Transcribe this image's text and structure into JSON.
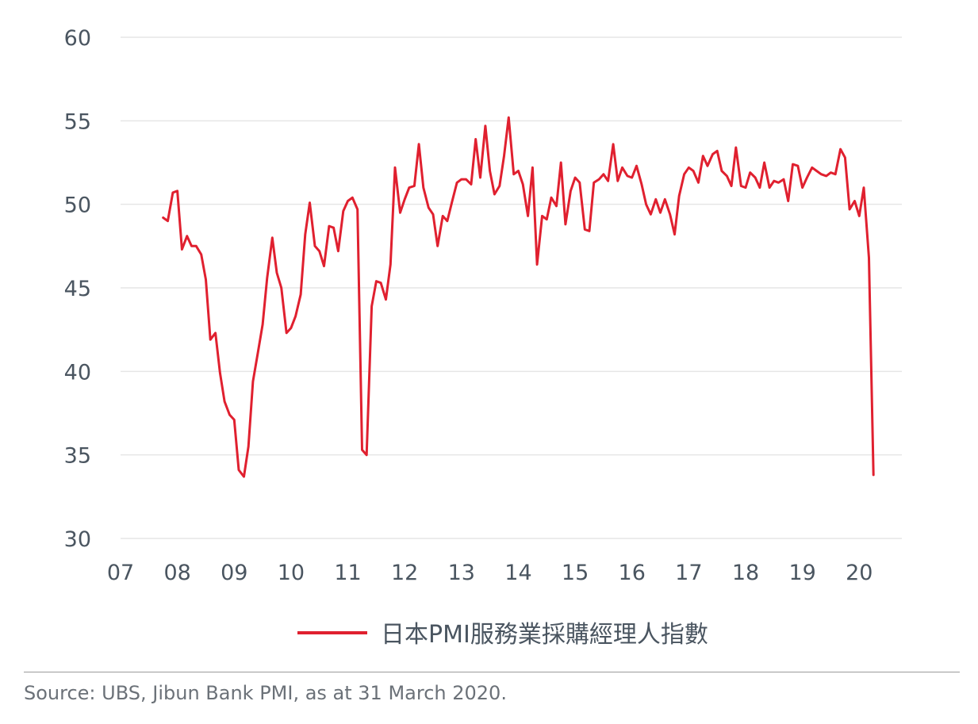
{
  "chart_data": {
    "type": "line",
    "title": "",
    "xlabel": "",
    "ylabel": "",
    "ylim": [
      30,
      60
    ],
    "yticks": [
      30,
      35,
      40,
      45,
      50,
      55,
      60
    ],
    "xlim": [
      2007.0,
      2020.75
    ],
    "xticks": [
      {
        "pos": 2007.0,
        "label": "07"
      },
      {
        "pos": 2008.0,
        "label": "08"
      },
      {
        "pos": 2009.0,
        "label": "09"
      },
      {
        "pos": 2010.0,
        "label": "10"
      },
      {
        "pos": 2011.0,
        "label": "11"
      },
      {
        "pos": 2012.0,
        "label": "12"
      },
      {
        "pos": 2013.0,
        "label": "13"
      },
      {
        "pos": 2014.0,
        "label": "14"
      },
      {
        "pos": 2015.0,
        "label": "15"
      },
      {
        "pos": 2016.0,
        "label": "16"
      },
      {
        "pos": 2017.0,
        "label": "17"
      },
      {
        "pos": 2018.0,
        "label": "18"
      },
      {
        "pos": 2019.0,
        "label": "19"
      },
      {
        "pos": 2020.0,
        "label": "20"
      }
    ],
    "grid": "horizontal",
    "legend_position": "bottom",
    "series": [
      {
        "name": "日本PMI服務業採購經理人指數",
        "color": "#e0202f",
        "x": [
          2007.75,
          2007.83,
          2007.92,
          2008.0,
          2008.08,
          2008.17,
          2008.25,
          2008.33,
          2008.42,
          2008.5,
          2008.58,
          2008.67,
          2008.75,
          2008.83,
          2008.92,
          2009.0,
          2009.08,
          2009.17,
          2009.25,
          2009.33,
          2009.42,
          2009.5,
          2009.58,
          2009.67,
          2009.75,
          2009.83,
          2009.92,
          2010.0,
          2010.08,
          2010.17,
          2010.25,
          2010.33,
          2010.42,
          2010.5,
          2010.58,
          2010.67,
          2010.75,
          2010.83,
          2010.92,
          2011.0,
          2011.08,
          2011.17,
          2011.25,
          2011.33,
          2011.42,
          2011.5,
          2011.58,
          2011.67,
          2011.75,
          2011.83,
          2011.92,
          2012.0,
          2012.08,
          2012.17,
          2012.25,
          2012.33,
          2012.42,
          2012.5,
          2012.58,
          2012.67,
          2012.75,
          2012.83,
          2012.92,
          2013.0,
          2013.08,
          2013.17,
          2013.25,
          2013.33,
          2013.42,
          2013.5,
          2013.58,
          2013.67,
          2013.75,
          2013.83,
          2013.92,
          2014.0,
          2014.08,
          2014.17,
          2014.25,
          2014.33,
          2014.42,
          2014.5,
          2014.58,
          2014.67,
          2014.75,
          2014.83,
          2014.92,
          2015.0,
          2015.08,
          2015.17,
          2015.25,
          2015.33,
          2015.42,
          2015.5,
          2015.58,
          2015.67,
          2015.75,
          2015.83,
          2015.92,
          2016.0,
          2016.08,
          2016.17,
          2016.25,
          2016.33,
          2016.42,
          2016.5,
          2016.58,
          2016.67,
          2016.75,
          2016.83,
          2016.92,
          2017.0,
          2017.08,
          2017.17,
          2017.25,
          2017.33,
          2017.42,
          2017.5,
          2017.58,
          2017.67,
          2017.75,
          2017.83,
          2017.92,
          2018.0,
          2018.08,
          2018.17,
          2018.25,
          2018.33,
          2018.42,
          2018.5,
          2018.58,
          2018.67,
          2018.75,
          2018.83,
          2018.92,
          2019.0,
          2019.08,
          2019.17,
          2019.25,
          2019.33,
          2019.42,
          2019.5,
          2019.58,
          2019.67,
          2019.75,
          2019.83,
          2019.92,
          2020.0,
          2020.08,
          2020.17,
          2020.25
        ],
        "y": [
          49.2,
          49.0,
          50.7,
          50.8,
          47.3,
          48.1,
          47.5,
          47.5,
          47.0,
          45.5,
          41.9,
          42.3,
          39.9,
          38.2,
          37.4,
          37.1,
          34.1,
          33.7,
          35.5,
          39.4,
          41.2,
          42.8,
          45.6,
          48.0,
          45.9,
          45.0,
          42.3,
          42.6,
          43.3,
          44.6,
          48.2,
          50.1,
          47.5,
          47.2,
          46.3,
          48.7,
          48.6,
          47.2,
          49.6,
          50.2,
          50.4,
          49.7,
          35.3,
          35.0,
          43.9,
          45.4,
          45.3,
          44.3,
          46.4,
          52.2,
          49.5,
          50.3,
          51.0,
          51.1,
          53.6,
          51.0,
          49.8,
          49.4,
          47.5,
          49.3,
          49.0,
          50.1,
          51.3,
          51.5,
          51.5,
          51.2,
          53.9,
          51.6,
          54.7,
          52.0,
          50.6,
          51.1,
          52.9,
          55.2,
          51.8,
          52.0,
          51.2,
          49.3,
          52.2,
          46.4,
          49.3,
          49.1,
          50.4,
          49.9,
          52.5,
          48.8,
          50.8,
          51.6,
          51.3,
          48.5,
          48.4,
          51.3,
          51.5,
          51.8,
          51.4,
          53.6,
          51.4,
          52.2,
          51.7,
          51.6,
          52.3,
          51.2,
          50.0,
          49.4,
          50.3,
          49.5,
          50.3,
          49.4,
          48.2,
          50.5,
          51.8,
          52.2,
          52.0,
          51.3,
          52.9,
          52.3,
          53.0,
          53.2,
          52.0,
          51.7,
          51.1,
          53.4,
          51.1,
          51.0,
          51.9,
          51.6,
          51.0,
          52.5,
          51.0,
          51.4,
          51.3,
          51.5,
          50.2,
          52.4,
          52.3,
          51.0,
          51.6,
          52.2,
          52.0,
          51.8,
          51.7,
          51.9,
          51.8,
          53.3,
          52.8,
          49.7,
          50.2,
          49.3,
          51.0,
          46.8,
          33.8
        ]
      }
    ]
  },
  "legend": {
    "items": [
      {
        "label": "日本PMI服務業採購經理人指數",
        "color": "#e0202f"
      }
    ]
  },
  "footer": {
    "source": "Source: UBS, Jibun Bank PMI, as at 31 March 2020."
  }
}
